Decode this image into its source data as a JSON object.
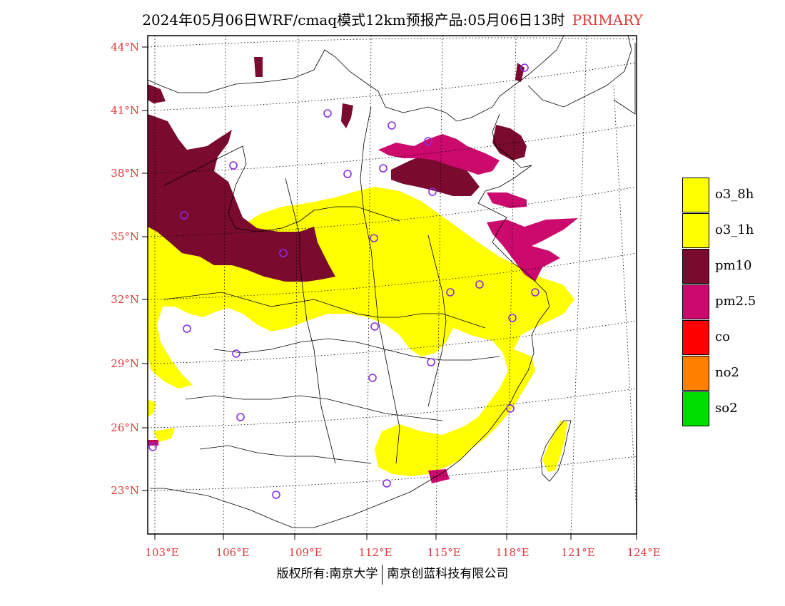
{
  "title": {
    "main": "2024年05月06日WRF/cmaq模式12km预报产品:05月06日13时",
    "tag": "PRIMARY"
  },
  "map": {
    "lat_labels": [
      "44°N",
      "41°N",
      "38°N",
      "35°N",
      "32°N",
      "29°N",
      "26°N",
      "23°N"
    ],
    "lon_labels": [
      "103°E",
      "106°E",
      "109°E",
      "112°E",
      "115°E",
      "118°E",
      "121°E",
      "124°E"
    ],
    "colors": {
      "o3_8h": "#ffff00",
      "o3_1h": "#ffff00",
      "pm10": "#7a0a2e",
      "pm25": "#cc0a6e",
      "co": "#ff0000",
      "no2": "#ff8000",
      "so2": "#00dd00",
      "axis_label": "#e03a3a",
      "station_marker": "#8a2be2"
    }
  },
  "legend": [
    {
      "label": "o3_8h",
      "color": "#ffff00"
    },
    {
      "label": "o3_1h",
      "color": "#ffff00"
    },
    {
      "label": "pm10",
      "color": "#7a0a2e"
    },
    {
      "label": "pm2.5",
      "color": "#cc0a6e"
    },
    {
      "label": "co",
      "color": "#ff0000"
    },
    {
      "label": "no2",
      "color": "#ff8000"
    },
    {
      "label": "so2",
      "color": "#00dd00"
    }
  ],
  "footer": {
    "left": "版权所有:南京大学",
    "right": "南京创蓝科技有限公司"
  }
}
